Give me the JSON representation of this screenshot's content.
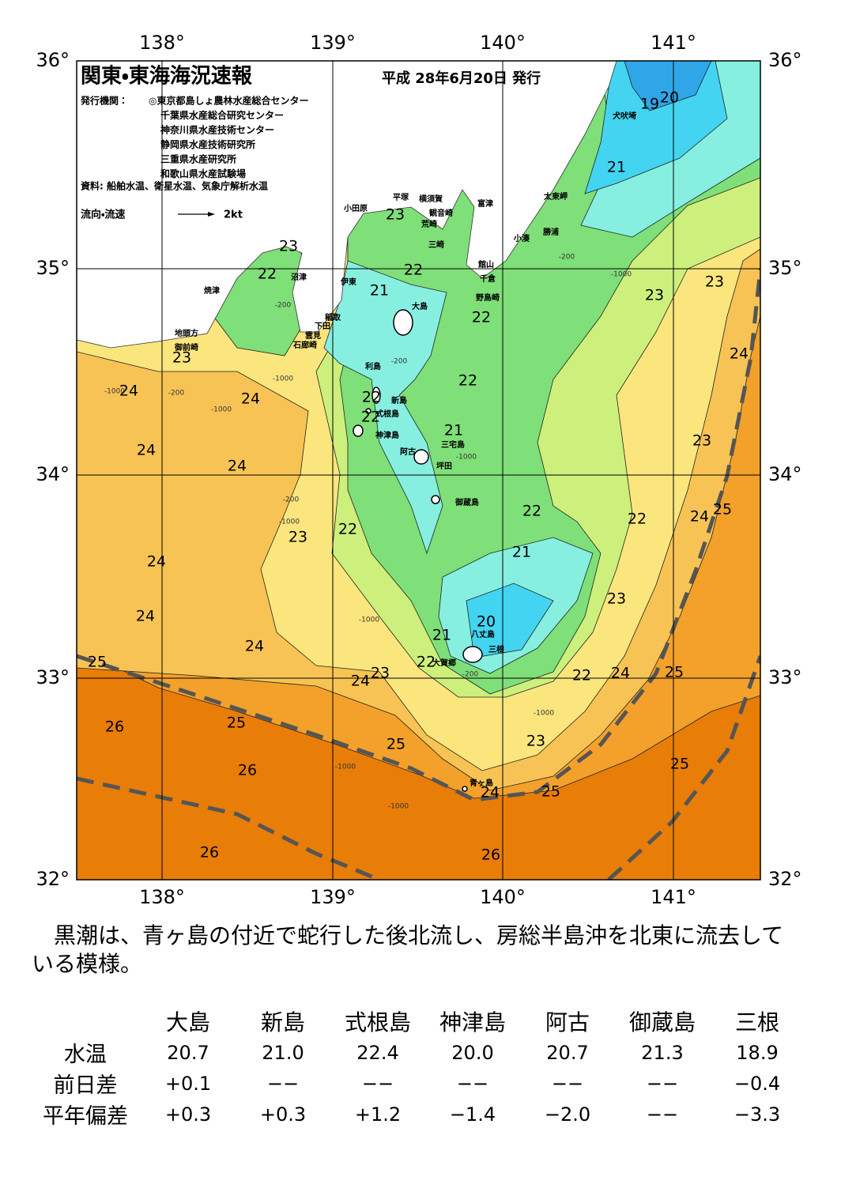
{
  "header": {
    "title": "関東・東海海況速報",
    "date": "平成 28年6月20日 発行",
    "issuer_label": "発行機関：",
    "issuers": [
      "◎東京都島しょ農林水産総合センター",
      "千葉県水産総合研究センター",
      "神奈川県水産技術センター",
      "静岡県水産技術研究所",
      "三重県水産研究所",
      "和歌山県水産試験場"
    ],
    "sources": "資料: 船舶水温、衛星水温、気象庁解析水温",
    "current_legend": "流向・流速",
    "current_scale": "2kt"
  },
  "map": {
    "lon_ticks": [
      "138°",
      "139°",
      "140°",
      "141°"
    ],
    "lat_ticks": [
      "36°",
      "35°",
      "34°",
      "33°",
      "32°"
    ],
    "isotherm_labels": [
      20,
      19,
      21,
      23,
      23,
      22,
      22,
      21,
      23,
      23,
      22,
      24,
      23,
      22,
      24,
      24,
      22,
      22,
      21,
      23,
      24,
      24,
      25,
      24,
      22,
      22,
      22,
      23,
      21,
      24,
      23,
      24,
      20,
      21,
      24,
      22,
      25,
      24,
      23,
      22,
      24,
      25,
      26,
      25,
      25,
      23,
      25,
      26,
      24,
      25,
      26,
      26
    ],
    "place_names": [
      "犬吠埼",
      "太東岬",
      "勝浦",
      "小湊",
      "富津",
      "平塚",
      "横須賀",
      "観音崎",
      "荒崎",
      "三崎",
      "館山",
      "千倉",
      "野島崎",
      "小田原",
      "沼津",
      "伊東",
      "焼津",
      "稲取",
      "下田",
      "雲見",
      "石廊崎",
      "地頭方",
      "御前崎",
      "大島",
      "利島",
      "新島",
      "式根島",
      "神津島",
      "阿古",
      "三宅島",
      "坪田",
      "御蔵島",
      "八丈島",
      "三根",
      "大賀郷",
      "青ヶ島"
    ],
    "depth_labels": [
      "-1000",
      "-200",
      "-1000",
      "-200",
      "-200",
      "-1000",
      "-200",
      "-1000",
      "-200",
      "-1000",
      "-1000",
      "-1000",
      "-200",
      "-1000",
      "-1000",
      "-1000"
    ]
  },
  "summary": "黒潮は、青ヶ島の付近で蛇行した後北流し、房総半島沖を北東に流去している模様。",
  "table": {
    "columns": [
      "大島",
      "新島",
      "式根島",
      "神津島",
      "阿古",
      "御蔵島",
      "三根"
    ],
    "rows": [
      {
        "label": "水温",
        "cells": [
          "20.7",
          "21.0",
          "22.4",
          "20.0",
          "20.7",
          "21.3",
          "18.9"
        ]
      },
      {
        "label": "前日差",
        "cells": [
          "+0.1",
          "−−",
          "−−",
          "−−",
          "−−",
          "−−",
          "−0.4"
        ]
      },
      {
        "label": "平年偏差",
        "cells": [
          "+0.3",
          "+0.3",
          "+1.2",
          "−1.4",
          "−2.0",
          "−−",
          "−3.3"
        ]
      }
    ]
  }
}
